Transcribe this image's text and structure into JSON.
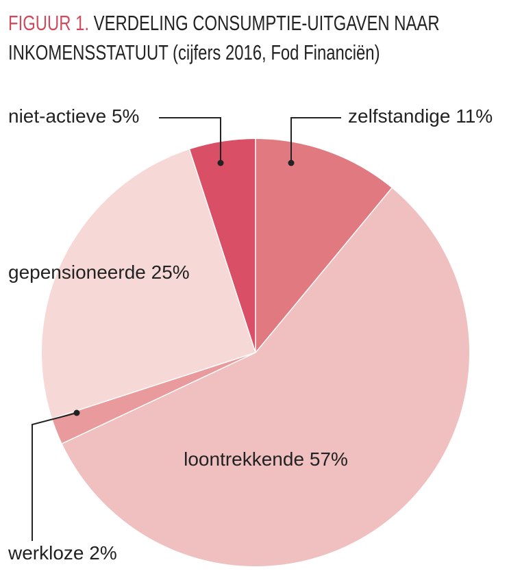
{
  "chart_data": {
    "type": "pie",
    "figure_label": "FIGUUR 1.",
    "title": "VERDELING CONSUMPTIE-UITGAVEN NAAR INKOMENSSTATUUT (cijfers 2016, Fod Financiën)",
    "categories": [
      "zelfstandige",
      "loontrekkende",
      "werkloze",
      "gepensioneerde",
      "niet-actieve"
    ],
    "values": [
      11,
      57,
      2,
      25,
      5
    ],
    "value_labels": [
      "11%",
      "57%",
      "2%",
      "25%",
      "5%"
    ],
    "colors": [
      "#e07a80",
      "#f0bfbf",
      "#e89a9c",
      "#f6d8d7",
      "#d94f66"
    ],
    "title_color": "#d04a5e"
  }
}
